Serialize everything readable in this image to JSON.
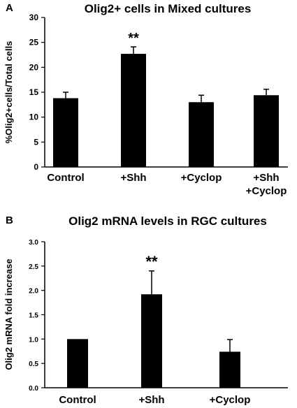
{
  "chart_data": [
    {
      "panel": "A",
      "type": "bar",
      "title": "Olig2+ cells in Mixed cultures",
      "ylabel": "%Olig2+cells/Total cells",
      "xlabel": "",
      "ylim": [
        0,
        30
      ],
      "yticks": [
        0,
        5,
        10,
        15,
        20,
        25,
        30
      ],
      "categories": [
        [
          "Control"
        ],
        [
          "+Shh"
        ],
        [
          "+Cyclop"
        ],
        [
          "+Shh",
          "+Cyclop"
        ]
      ],
      "values": [
        13.8,
        22.7,
        13.0,
        14.4
      ],
      "errors": [
        1.2,
        1.4,
        1.4,
        1.2
      ],
      "annotations": [
        "",
        "**",
        "",
        ""
      ],
      "bar_color": "#000000",
      "grid": false,
      "legend": "none"
    },
    {
      "panel": "B",
      "type": "bar",
      "title": "Olig2 mRNA levels in RGC cultures",
      "ylabel": "Olig2 mRNA fold increase",
      "xlabel": "",
      "ylim": [
        0,
        3.0
      ],
      "yticks": [
        "0.0",
        "0.5",
        "1.0",
        "1.5",
        "2.0",
        "2.5",
        "3.0"
      ],
      "categories": [
        [
          "Control"
        ],
        [
          "+Shh"
        ],
        [
          "+Cyclop"
        ]
      ],
      "values": [
        1.0,
        1.92,
        0.74
      ],
      "errors": [
        0,
        0.48,
        0.25
      ],
      "annotations": [
        "",
        "**",
        ""
      ],
      "bar_color": "#000000",
      "grid": false,
      "legend": "none"
    }
  ]
}
